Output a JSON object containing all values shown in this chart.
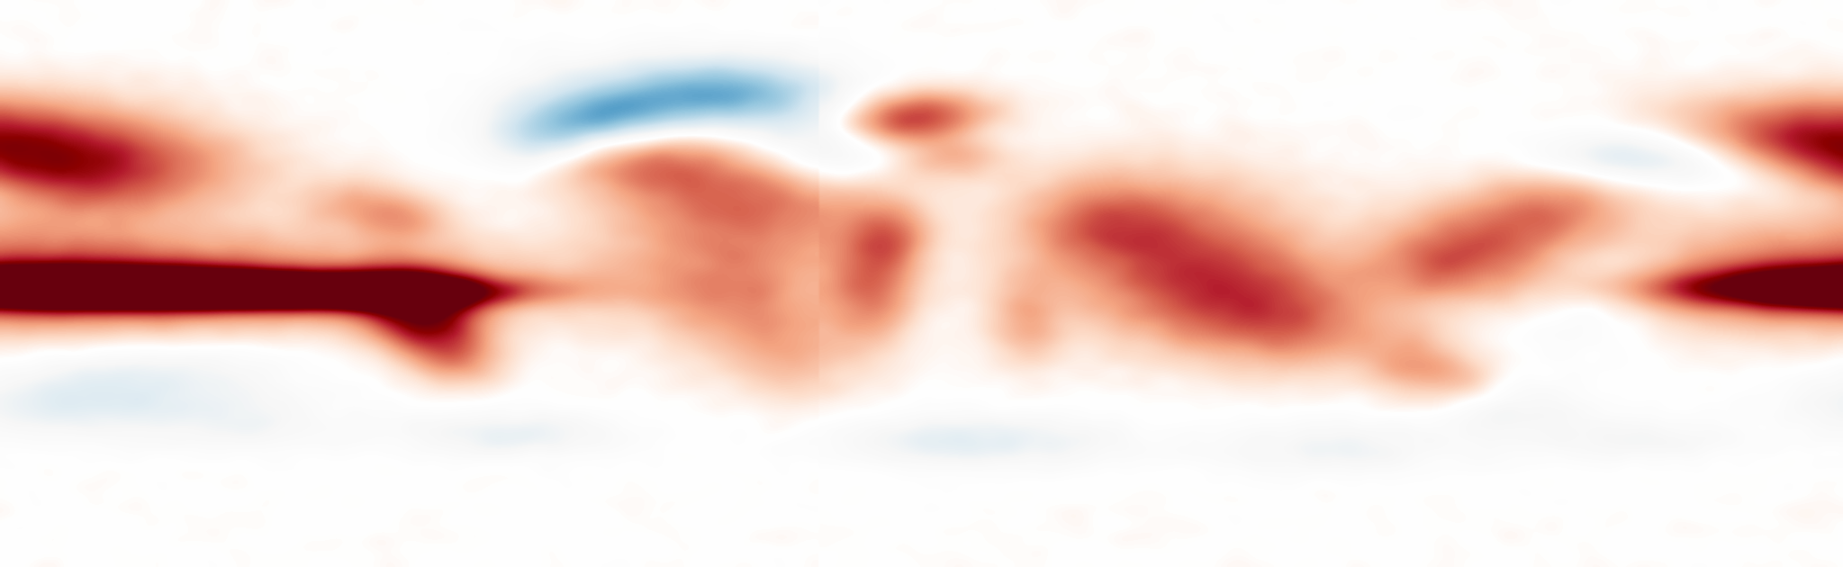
{
  "figsize": [
    20.47,
    6.3
  ],
  "dpi": 100,
  "central_longitude": 160,
  "land_color": "#7a7a7a",
  "land_edge_color": "#555555",
  "land_linewidth": 0.3,
  "border_color": "#4a4a4a",
  "border_linewidth": 0.2,
  "ocean_background": "#ffffff",
  "colormap_colors": [
    [
      0.0,
      "#2166ac"
    ],
    [
      0.12,
      "#4393c3"
    ],
    [
      0.22,
      "#92c5de"
    ],
    [
      0.32,
      "#d1e5f0"
    ],
    [
      0.42,
      "#f7f7f7"
    ],
    [
      0.5,
      "#ffffff"
    ],
    [
      0.58,
      "#fddbc7"
    ],
    [
      0.68,
      "#f4a582"
    ],
    [
      0.78,
      "#d6604d"
    ],
    [
      0.87,
      "#b2182b"
    ],
    [
      0.93,
      "#8b0000"
    ],
    [
      1.0,
      "#67000d"
    ]
  ],
  "vmin": -3.0,
  "vmax": 3.0,
  "seed": 42,
  "nlat": 360,
  "nlon": 720
}
